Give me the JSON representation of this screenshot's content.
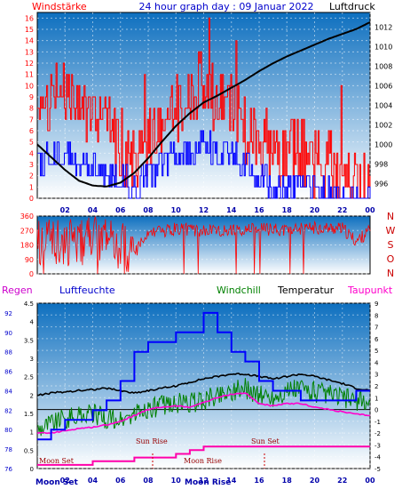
{
  "header": {
    "left_label": "Windstärke",
    "title": "24 hour graph day : 09 Januar 2022",
    "right_label": "Luftdruck"
  },
  "legend": {
    "regen": "Regen",
    "luftfeuchte": "Luftfeuchte",
    "windchill": "Windchill",
    "temperatur": "Temperatur",
    "taupunkt": "Taupunkt"
  },
  "events": {
    "moon_set": "Moon Set",
    "sun_rise": "Sun Rise",
    "moon_rise": "Moon Rise",
    "sun_set": "Sun Set"
  },
  "compass": [
    "N",
    "W",
    "S",
    "O",
    "N"
  ],
  "colors": {
    "wind": "#ff0000",
    "gust_low": "#0000ff",
    "pressure": "#000000",
    "humidity": "#0000ff",
    "windchill": "#008000",
    "temperature": "#000000",
    "dewpoint": "#ff00cc",
    "sky_top": "#0d6fbf",
    "sky_bottom": "#ffffff"
  },
  "chart_data": [
    {
      "type": "line",
      "name": "wind-pressure",
      "x_ticks": [
        "02",
        "04",
        "06",
        "08",
        "10",
        "12",
        "14",
        "16",
        "18",
        "20",
        "22",
        "00"
      ],
      "left_ticks": [
        "0",
        "1",
        "2",
        "3",
        "4",
        "5",
        "6",
        "7",
        "8",
        "9",
        "10",
        "11",
        "12",
        "13",
        "14",
        "15",
        "16"
      ],
      "right_ticks": [
        "996",
        "998",
        "1000",
        "1002",
        "1004",
        "1006",
        "1008",
        "1010",
        "1012"
      ],
      "ylim_left": [
        0,
        16.5
      ],
      "ylim_right": [
        994.5,
        1013.5
      ],
      "pressure": {
        "x": [
          0,
          1,
          2,
          3,
          4,
          5,
          6,
          7,
          8,
          9,
          10,
          11,
          12,
          13,
          14,
          15,
          16,
          17,
          18,
          19,
          20,
          21,
          22,
          23,
          24
        ],
        "y": [
          1000.0,
          998.7,
          997.4,
          996.3,
          995.8,
          995.7,
          996.1,
          997.1,
          998.6,
          1000.3,
          1001.9,
          1003.2,
          1004.3,
          1005.0,
          1005.8,
          1006.6,
          1007.5,
          1008.3,
          1009.0,
          1009.6,
          1010.2,
          1010.8,
          1011.3,
          1011.8,
          1012.5
        ]
      },
      "wind": {
        "x": [
          0,
          1,
          2,
          3,
          4,
          5,
          6,
          7,
          8,
          9,
          10,
          11,
          12,
          13,
          14,
          15,
          16,
          17,
          18,
          19,
          20,
          21,
          22,
          23,
          24
        ],
        "y": [
          6,
          9,
          9,
          8,
          7,
          6,
          5,
          3,
          5,
          7,
          8,
          9,
          10,
          8,
          8,
          6,
          5,
          4,
          4,
          4,
          3,
          3,
          2,
          1,
          1
        ]
      },
      "gust_low": {
        "x": [
          0,
          1,
          2,
          3,
          4,
          5,
          6,
          7,
          8,
          9,
          10,
          11,
          12,
          13,
          14,
          15,
          16,
          17,
          18,
          19,
          20,
          21,
          22,
          23,
          24
        ],
        "y": [
          3,
          4,
          4,
          3,
          3,
          2,
          2,
          1,
          2,
          3,
          4,
          4,
          5,
          4,
          4,
          3,
          2,
          1,
          1,
          1,
          1,
          1,
          0,
          0,
          0
        ]
      }
    },
    {
      "type": "line",
      "name": "wind-direction",
      "left_ticks": [
        "0",
        "90",
        "180",
        "270",
        "360"
      ],
      "ylim": [
        0,
        360
      ],
      "direction": {
        "x": [
          0,
          2,
          4,
          6,
          7,
          8,
          10,
          12,
          14,
          16,
          18,
          20,
          22,
          23,
          24
        ],
        "y": [
          200,
          190,
          210,
          180,
          130,
          250,
          280,
          270,
          265,
          280,
          270,
          285,
          280,
          200,
          270
        ]
      }
    },
    {
      "type": "line",
      "name": "humidity-temperature",
      "x_ticks": [
        "02",
        "04",
        "06",
        "08",
        "10",
        "12",
        "14",
        "16",
        "18",
        "20",
        "22",
        "00"
      ],
      "rain_ticks": [
        "0",
        "0.5",
        "1",
        "1.5",
        "2",
        "2.5",
        "3",
        "3.5",
        "4",
        "4.5"
      ],
      "humidity_ticks": [
        "76",
        "78",
        "80",
        "82",
        "84",
        "86",
        "88",
        "90",
        "92"
      ],
      "temp_ticks": [
        "-5",
        "-4",
        "-3",
        "-2",
        "-1",
        "0",
        "1",
        "2",
        "3",
        "4",
        "5",
        "6",
        "7",
        "8",
        "9"
      ],
      "ylim_temp": [
        -5,
        9
      ],
      "ylim_humidity": [
        76,
        93
      ],
      "humidity": {
        "x": [
          0,
          1,
          2,
          3,
          4,
          5,
          6,
          7,
          8,
          9,
          10,
          11,
          12,
          13,
          14,
          15,
          16,
          17,
          18,
          19,
          20,
          21,
          22,
          23,
          24
        ],
        "y": [
          79,
          80,
          81,
          81,
          82,
          83,
          85,
          88,
          89,
          89,
          90,
          90,
          92,
          90,
          88,
          87,
          85,
          84,
          84,
          83,
          83,
          83,
          83,
          84,
          84
        ]
      },
      "temperature": {
        "x": [
          0,
          1,
          2,
          3,
          4,
          5,
          6,
          7,
          8,
          9,
          10,
          11,
          12,
          13,
          14,
          15,
          16,
          17,
          18,
          19,
          20,
          21,
          22,
          23,
          24
        ],
        "y": [
          1.2,
          1.4,
          1.5,
          1.6,
          1.7,
          1.8,
          1.6,
          1.4,
          1.6,
          1.8,
          2.0,
          2.3,
          2.6,
          2.8,
          3.0,
          3.0,
          2.8,
          2.6,
          2.8,
          3.0,
          2.8,
          2.5,
          2.2,
          1.8,
          1.6
        ]
      },
      "windchill": {
        "x": [
          0,
          1,
          2,
          3,
          4,
          5,
          6,
          7,
          8,
          9,
          10,
          11,
          12,
          13,
          14,
          15,
          16,
          17,
          18,
          19,
          20,
          21,
          22,
          23,
          24
        ],
        "y": [
          -1.5,
          -1.0,
          -0.8,
          -0.5,
          -0.3,
          -0.8,
          -1.0,
          -0.5,
          0.0,
          0.3,
          0.6,
          0.5,
          0.8,
          1.2,
          1.6,
          1.8,
          1.2,
          1.0,
          1.5,
          1.8,
          1.5,
          1.2,
          1.0,
          0.8,
          0.5
        ]
      },
      "dewpoint": {
        "x": [
          0,
          1,
          2,
          3,
          4,
          5,
          6,
          7,
          8,
          9,
          10,
          11,
          12,
          13,
          14,
          15,
          16,
          17,
          18,
          19,
          20,
          21,
          22,
          23,
          24
        ],
        "y": [
          -2.0,
          -2.0,
          -1.8,
          -1.6,
          -1.5,
          -1.3,
          -1.0,
          -0.5,
          0.0,
          0.2,
          0.3,
          0.2,
          0.6,
          1.0,
          1.3,
          1.4,
          0.5,
          0.3,
          0.5,
          0.5,
          0.2,
          0.0,
          -0.2,
          -0.4,
          -0.5
        ]
      },
      "rain_cumulative": {
        "x": [
          0,
          1,
          2,
          3,
          4,
          5,
          6,
          7,
          8,
          9,
          10,
          11,
          12,
          13,
          14,
          15,
          16,
          17,
          18,
          19,
          20,
          21,
          22,
          23,
          24
        ],
        "y": [
          0.1,
          0.1,
          0.1,
          0.1,
          0.2,
          0.2,
          0.2,
          0.3,
          0.3,
          0.3,
          0.4,
          0.5,
          0.6,
          0.6,
          0.6,
          0.6,
          0.6,
          0.6,
          0.6,
          0.6,
          0.6,
          0.6,
          0.6,
          0.6,
          0.6
        ]
      }
    }
  ]
}
